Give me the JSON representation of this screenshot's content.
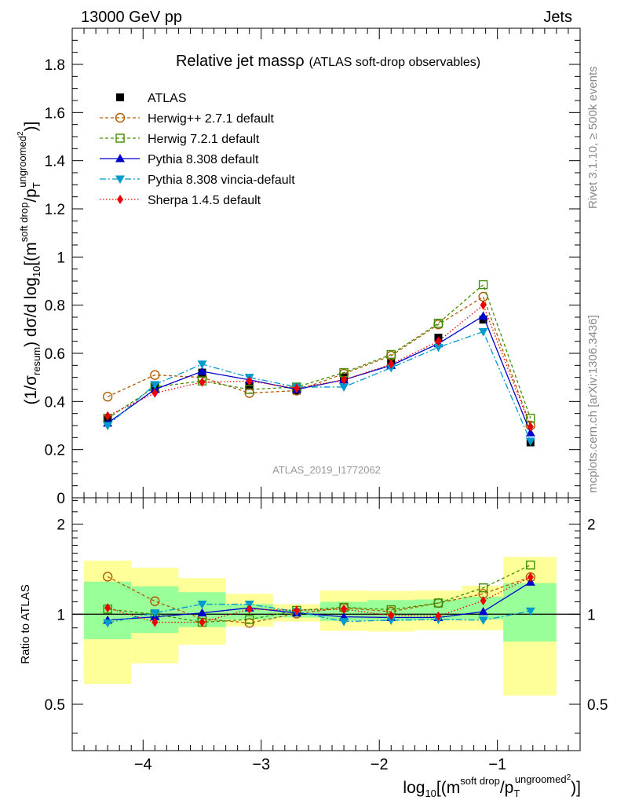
{
  "header": {
    "left": "13000 GeV pp",
    "right": "Jets"
  },
  "side_labels": {
    "rivet": "Rivet 3.1.10, ≥ 500k events",
    "mcplots": "mcplots.cern.ch [arXiv:1306.3436]"
  },
  "analysis_id": "ATLAS_2019_I1772062",
  "chart_data": [
    {
      "type": "line",
      "panel": "main",
      "title": "Relative jet massρ",
      "subtitle": "(ATLAS soft-drop observables)",
      "ylabel": {
        "prefix": "(1/σ",
        "sub1": "resum",
        "mid": ") dσ/d log",
        "sub2": "10",
        "mid2": "[(m",
        "sup1": "soft drop",
        "mid3": "/p",
        "sub3": "T",
        "sup2": "ungroomed",
        "sup3": "2",
        "suffix": ")]"
      },
      "xlim": [
        -4.6,
        -0.3
      ],
      "ylim": [
        0,
        1.95
      ],
      "yticks": [
        0,
        0.2,
        0.4,
        0.6,
        0.8,
        1,
        1.2,
        1.4,
        1.6,
        1.8
      ],
      "ytick_labels": [
        "0",
        "0.2",
        "0.4",
        "0.6",
        "0.8",
        "1",
        "1.2",
        "1.4",
        "1.6",
        "1.8"
      ],
      "x": [
        -4.3,
        -3.9,
        -3.5,
        -3.1,
        -2.7,
        -2.3,
        -1.9,
        -1.5,
        -1.12,
        -0.72
      ],
      "series": [
        {
          "name": "ATLAS",
          "color": "#000000",
          "marker": "square-filled",
          "dash": "none",
          "values": [
            0.325,
            0.465,
            0.52,
            0.465,
            0.445,
            0.5,
            0.565,
            0.665,
            0.74,
            0.23
          ]
        },
        {
          "name": "Herwig++ 2.7.1 default",
          "color": "#b05a00",
          "marker": "circle-open",
          "dash": "4,3",
          "values": [
            0.42,
            0.51,
            0.5,
            0.435,
            0.445,
            0.515,
            0.59,
            0.72,
            0.835,
            0.3
          ]
        },
        {
          "name": "Herwig 7.2.1 default",
          "color": "#3f8f00",
          "marker": "square-open",
          "dash": "4,3",
          "values": [
            0.33,
            0.46,
            0.485,
            0.45,
            0.46,
            0.52,
            0.595,
            0.725,
            0.885,
            0.33
          ]
        },
        {
          "name": "Pythia 8.308 default",
          "color": "#0000cc",
          "marker": "triangle-up",
          "dash": "none",
          "values": [
            0.31,
            0.45,
            0.525,
            0.49,
            0.45,
            0.49,
            0.55,
            0.64,
            0.755,
            0.27
          ]
        },
        {
          "name": "Pythia 8.308 vincia-default",
          "color": "#0099cc",
          "marker": "triangle-down",
          "dash": "8,3,2,3",
          "values": [
            0.3,
            0.47,
            0.555,
            0.5,
            0.46,
            0.46,
            0.54,
            0.625,
            0.69,
            0.235
          ]
        },
        {
          "name": "Sherpa 1.4.5 default",
          "color": "#ee0000",
          "marker": "diamond",
          "dash": "1.5,2.5",
          "values": [
            0.34,
            0.435,
            0.48,
            0.485,
            0.455,
            0.49,
            0.555,
            0.65,
            0.8,
            0.295
          ]
        }
      ]
    },
    {
      "type": "line",
      "panel": "ratio",
      "ylabel": "Ratio to ATLAS",
      "ylim": [
        0.35,
        2.45
      ],
      "yticks": [
        0.5,
        1,
        2
      ],
      "ytick_labels": [
        "0.5",
        "1",
        "2"
      ],
      "xticks": [
        -4,
        -3,
        -2,
        -1
      ],
      "xtick_labels": [
        "−4",
        "−3",
        "−2",
        "−1"
      ],
      "xlabel": {
        "prefix": "log",
        "sub1": "10",
        "mid": "[(m",
        "sup1": "soft drop",
        "mid2": "/p",
        "sub2": "T",
        "sup2": "ungroomed",
        "sup3": "2",
        "suffix": ")]"
      },
      "bin_edges": [
        -4.5,
        -4.1,
        -3.7,
        -3.3,
        -2.9,
        -2.5,
        -2.1,
        -1.7,
        -1.3,
        -0.95,
        -0.5
      ],
      "band_yellow": [
        [
          0.585,
          1.51
        ],
        [
          0.685,
          1.43
        ],
        [
          0.79,
          1.32
        ],
        [
          0.91,
          1.17
        ],
        [
          0.945,
          1.08
        ],
        [
          0.88,
          1.2
        ],
        [
          0.875,
          1.195
        ],
        [
          0.885,
          1.2
        ],
        [
          0.885,
          1.245
        ],
        [
          0.535,
          1.555
        ]
      ],
      "band_green": [
        [
          0.825,
          1.285
        ],
        [
          0.865,
          1.24
        ],
        [
          0.905,
          1.185
        ],
        [
          0.96,
          1.08
        ],
        [
          0.975,
          1.04
        ],
        [
          0.95,
          1.1
        ],
        [
          0.95,
          1.115
        ],
        [
          0.955,
          1.12
        ],
        [
          0.96,
          1.145
        ],
        [
          0.81,
          1.27
        ]
      ],
      "series": [
        {
          "name": "Herwig++ 2.7.1 default",
          "values": [
            1.335,
            1.105,
            0.965,
            0.935,
            1.005,
            1.05,
            1.02,
            1.09,
            1.17,
            1.33
          ]
        },
        {
          "name": "Herwig 7.2.1 default",
          "values": [
            1.04,
            1.0,
            0.94,
            0.96,
            1.03,
            1.055,
            1.035,
            1.09,
            1.225,
            1.46
          ]
        },
        {
          "name": "Pythia 8.308 default",
          "values": [
            0.955,
            0.98,
            1.01,
            1.05,
            1.01,
            0.98,
            0.975,
            0.975,
            1.02,
            1.28
          ]
        },
        {
          "name": "Pythia 8.308 vincia-default",
          "values": [
            0.935,
            1.01,
            1.08,
            1.08,
            1.02,
            0.945,
            0.955,
            0.96,
            0.955,
            1.025
          ]
        },
        {
          "name": "Sherpa 1.4.5 default",
          "values": [
            1.05,
            0.94,
            0.94,
            1.04,
            1.03,
            1.04,
            0.99,
            0.985,
            1.11,
            1.33
          ]
        }
      ]
    }
  ]
}
